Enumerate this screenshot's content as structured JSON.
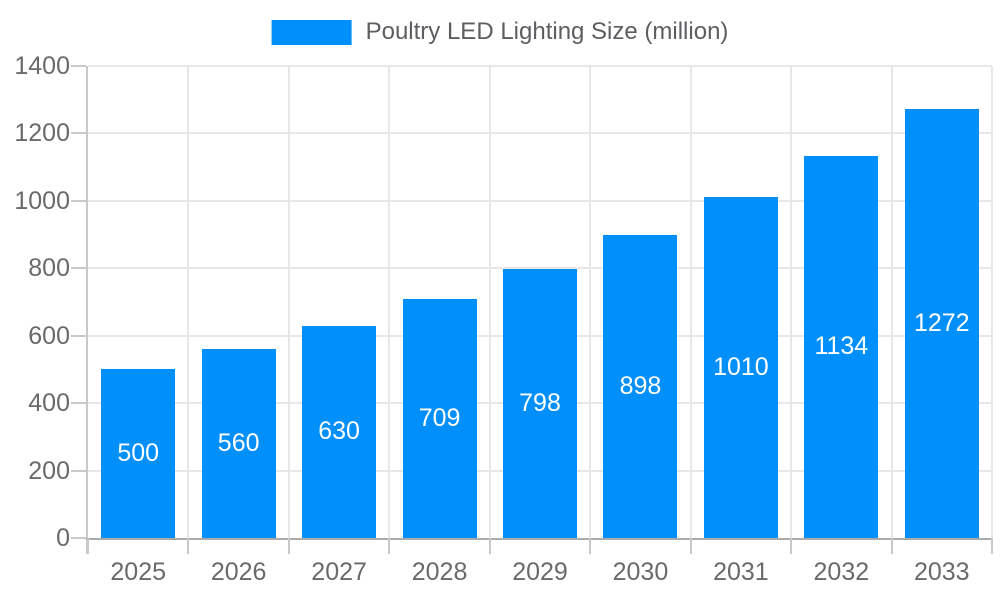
{
  "legend": {
    "label": "Poultry LED Lighting Size (million)"
  },
  "chart_data": {
    "type": "bar",
    "title": "",
    "categories": [
      "2025",
      "2026",
      "2027",
      "2028",
      "2029",
      "2030",
      "2031",
      "2032",
      "2033"
    ],
    "series": [
      {
        "name": "Poultry LED Lighting Size (million)",
        "values": [
          500,
          560,
          630,
          709,
          798,
          898,
          1010,
          1134,
          1272
        ]
      }
    ],
    "xlabel": "",
    "ylabel": "",
    "ylim": [
      0,
      1400
    ],
    "yticks": [
      0,
      200,
      400,
      600,
      800,
      1000,
      1200,
      1400
    ],
    "grid": true,
    "legend_position": "top-center",
    "value_label_position": "inside-center"
  },
  "colors": {
    "bar": "#008FFB",
    "value_label_text": "#ffffff",
    "grid_line": "#e7e7e7",
    "x_axis_line": "#ababab",
    "y_axis_line": "#c9c9c9",
    "tick": "#c9c9c9",
    "axis_label_text": "#6a6a6a",
    "legend_text": "#5c5e62",
    "background": "#ffffff"
  }
}
